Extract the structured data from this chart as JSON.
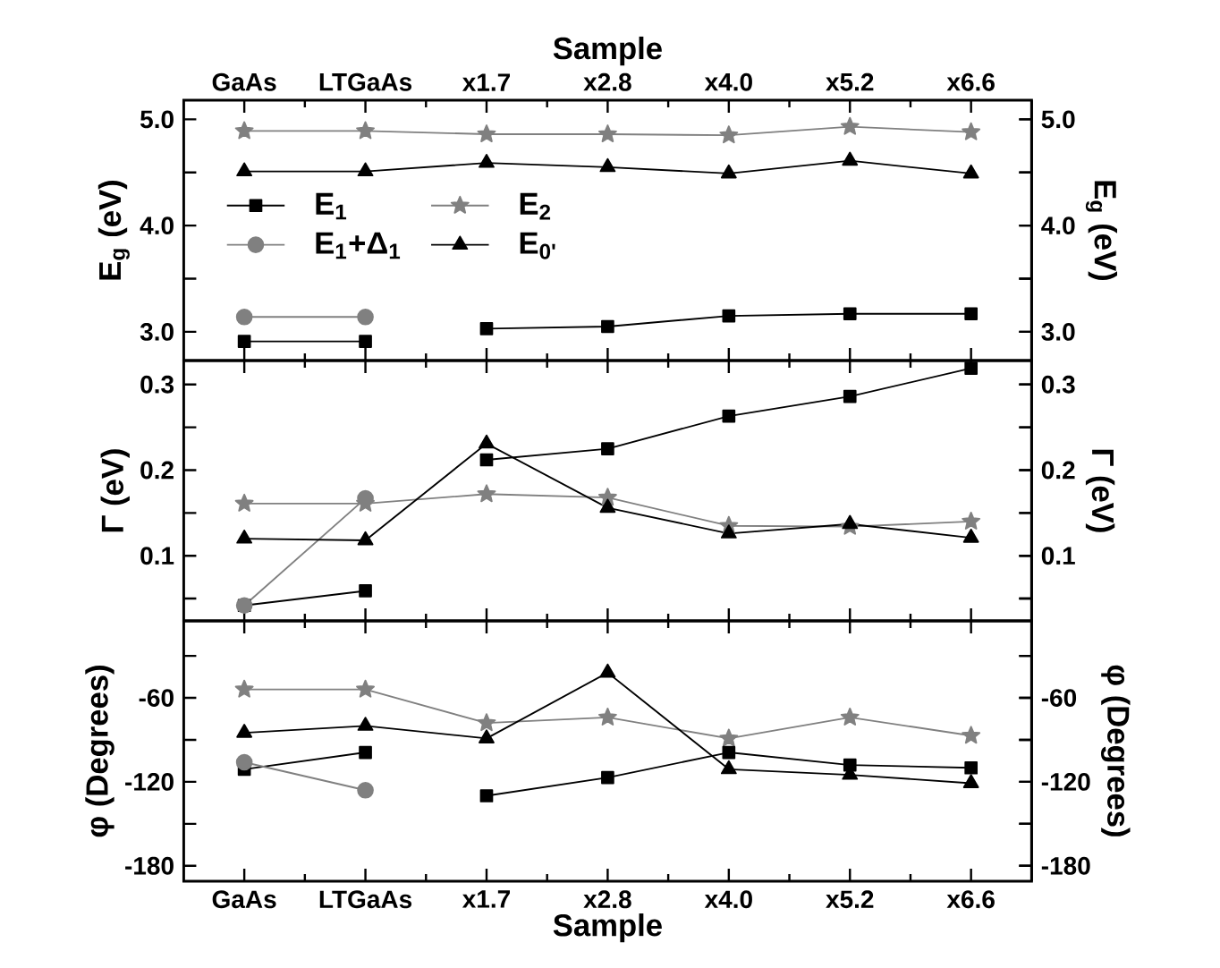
{
  "chart_data": [
    {
      "type": "line",
      "x2label": "Sample",
      "ylabel": "E$_{g}$ (eV)",
      "y2label": "E$_{g}$ (eV)",
      "categories": [
        "GaAs",
        "LTGaAs",
        "x1.7",
        "x2.8",
        "x4.0",
        "x5.2",
        "x6.6"
      ],
      "ylim": [
        2.73,
        5.18
      ],
      "yticks": [
        {
          "value": 3.0,
          "label": "3.0"
        },
        {
          "value": 3.5,
          "label": null
        },
        {
          "value": 4.0,
          "label": "4.0"
        },
        {
          "value": 4.5,
          "label": null
        },
        {
          "value": 5.0,
          "label": "5.0"
        }
      ],
      "y2lim": [
        2.73,
        5.18
      ],
      "y2ticks": [
        {
          "value": 3.0,
          "label": "3.0"
        },
        {
          "value": 3.5,
          "label": null
        },
        {
          "value": 4.0,
          "label": "4.0"
        },
        {
          "value": 4.5,
          "label": null
        },
        {
          "value": 5.0,
          "label": "5.0"
        }
      ],
      "legend": "left",
      "series": [
        {
          "name": "E$_{1}$",
          "color": "#000000",
          "marker": "square",
          "values": [
            2.91,
            2.91,
            null,
            null,
            null,
            null,
            null
          ]
        },
        {
          "name": "E$_{1}$+Δ$_{1}$",
          "color": "#808080",
          "marker": "circle",
          "values": [
            3.14,
            3.14,
            null,
            null,
            null,
            null,
            null
          ]
        },
        {
          "name": "E$_{2}$",
          "color": "#808080",
          "marker": "star",
          "values": [
            4.89,
            4.89,
            4.86,
            4.86,
            4.85,
            4.93,
            4.88
          ]
        },
        {
          "name": "E$_{0'}$",
          "color": "#000000",
          "marker": "triangle",
          "values": [
            4.51,
            4.51,
            4.59,
            4.55,
            4.49,
            4.61,
            4.49
          ]
        },
        {
          "color": "#000000",
          "marker": "square",
          "values": [
            null,
            null,
            3.03,
            3.05,
            3.15,
            3.17,
            3.17
          ]
        }
      ]
    },
    {
      "type": "line",
      "ylabel": "Γ (eV)",
      "y2label": "Γ (eV)",
      "categories": [
        null,
        null,
        null,
        null,
        null,
        null,
        null
      ],
      "tick_labels": "y",
      "ylim": [
        0.024,
        0.328
      ],
      "yticks": [
        {
          "value": 0.05,
          "label": null
        },
        0.1,
        {
          "value": 0.15,
          "label": null
        },
        0.2,
        {
          "value": 0.25,
          "label": null
        },
        0.3
      ],
      "y2lim": [
        0.024,
        0.328
      ],
      "y2ticks": [
        {
          "value": 0.05,
          "label": null
        },
        0.1,
        {
          "value": 0.15,
          "label": null
        },
        0.2,
        {
          "value": 0.25,
          "label": null
        },
        0.3
      ],
      "series": [
        {
          "color": "#000000",
          "marker": "square",
          "values": [
            0.042,
            0.059,
            null,
            null,
            null,
            null,
            null
          ]
        },
        {
          "color": "#808080",
          "marker": "circle",
          "values": [
            0.042,
            0.167,
            null,
            null,
            null,
            null,
            null
          ]
        },
        {
          "color": "#808080",
          "marker": "star",
          "values": [
            0.161,
            0.161,
            0.172,
            0.168,
            0.135,
            0.134,
            0.14
          ]
        },
        {
          "color": "#000000",
          "marker": "triangle",
          "values": [
            0.12,
            0.118,
            0.231,
            0.156,
            0.126,
            0.137,
            0.121
          ]
        },
        {
          "color": "#000000",
          "marker": "square",
          "values": [
            null,
            null,
            0.212,
            0.225,
            0.263,
            0.286,
            0.319
          ]
        }
      ]
    },
    {
      "type": "line",
      "xlabel": "Sample",
      "ylabel": "φ (Degrees)",
      "y2label": "φ (Degrees)",
      "categories": [
        "GaAs",
        "LTGaAs",
        "x1.7",
        "x2.8",
        "x4.0",
        "x5.2",
        "x6.6"
      ],
      "ylim": [
        -191,
        -5
      ],
      "yticks": [
        -180,
        {
          "value": -150,
          "label": null
        },
        -120,
        {
          "value": -90,
          "label": null
        },
        -60,
        {
          "value": -30,
          "label": null
        }
      ],
      "y2lim": [
        -191,
        -5
      ],
      "y2ticks": [
        -180,
        {
          "value": -150,
          "label": null
        },
        -120,
        {
          "value": -90,
          "label": null
        },
        -60,
        {
          "value": -30,
          "label": null
        }
      ],
      "series": [
        {
          "color": "#000000",
          "marker": "square",
          "values": [
            -111,
            -99,
            null,
            null,
            null,
            null,
            null
          ]
        },
        {
          "color": "#808080",
          "marker": "circle",
          "values": [
            -106,
            -126,
            null,
            null,
            null,
            null,
            null
          ]
        },
        {
          "color": "#808080",
          "marker": "star",
          "values": [
            -54,
            -54,
            -78,
            -74,
            -89,
            -74,
            -87
          ]
        },
        {
          "color": "#000000",
          "marker": "triangle",
          "values": [
            -85,
            -80,
            -89,
            -42,
            -111,
            -115,
            -121
          ]
        },
        {
          "color": "#000000",
          "marker": "square",
          "values": [
            null,
            null,
            -130,
            -117,
            -99,
            -108,
            -110
          ]
        }
      ]
    }
  ]
}
